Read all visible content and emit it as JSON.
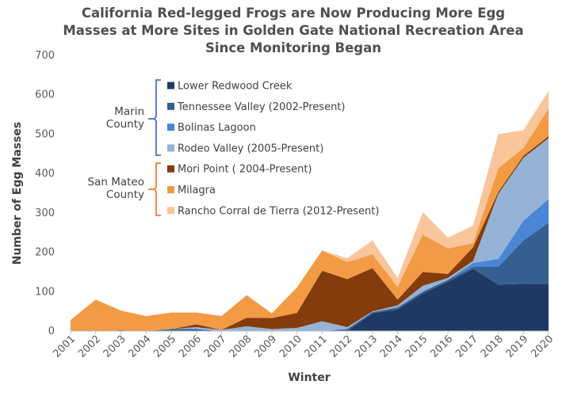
{
  "chart_data": {
    "type": "area",
    "title_lines": [
      "California Red-legged Frogs are Now Producing More Egg",
      "Masses at More Sites in Golden Gate National Recreation Area",
      "Since Monitoring Began"
    ],
    "xlabel": "Winter",
    "ylabel": "Number of Egg Masses",
    "ylim": [
      0,
      700
    ],
    "yticks": [
      0,
      100,
      200,
      300,
      400,
      500,
      600,
      700
    ],
    "x": [
      "2001",
      "2002",
      "2003",
      "2004",
      "2005",
      "2006",
      "2007",
      "2008",
      "2009",
      "2010",
      "2011",
      "2012",
      "2013",
      "2014",
      "2015",
      "2016",
      "2017",
      "2018",
      "2019",
      "2020"
    ],
    "stacked": true,
    "grid": false,
    "legend_position": "upper-left",
    "series": [
      {
        "name": "Lower Redwood Creek",
        "color": "#1f3864",
        "group": "Marin County",
        "values": [
          0,
          0,
          0,
          0,
          0,
          0,
          0,
          0,
          0,
          0,
          0,
          0,
          45,
          55,
          95,
          125,
          158,
          118,
          120,
          120
        ]
      },
      {
        "name": "Tennessee Valley (2002-Present)",
        "color": "#365f91",
        "group": "Marin County",
        "values": [
          0,
          0,
          2,
          0,
          5,
          5,
          0,
          0,
          0,
          0,
          0,
          5,
          3,
          5,
          5,
          5,
          5,
          45,
          110,
          155
        ]
      },
      {
        "name": "Bolinas Lagoon",
        "color": "#4a86d4",
        "group": "Marin County",
        "values": [
          0,
          0,
          0,
          0,
          0,
          0,
          0,
          0,
          0,
          0,
          0,
          0,
          0,
          0,
          0,
          0,
          10,
          20,
          50,
          60
        ]
      },
      {
        "name": "Rodeo Valley (2005-Present)",
        "color": "#95b3d7",
        "group": "Marin County",
        "values": [
          0,
          0,
          0,
          0,
          0,
          5,
          3,
          12,
          5,
          8,
          25,
          5,
          2,
          5,
          15,
          5,
          5,
          165,
          160,
          155
        ]
      },
      {
        "name": "Mori Point ( 2004-Present)",
        "color": "#843c0c",
        "group": "San Mateo County",
        "values": [
          0,
          0,
          0,
          0,
          0,
          7,
          0,
          22,
          28,
          38,
          128,
          122,
          110,
          15,
          35,
          10,
          35,
          5,
          5,
          5
        ]
      },
      {
        "name": "Milagra",
        "color": "#f39a45",
        "group": "San Mateo County",
        "values": [
          28,
          80,
          50,
          38,
          42,
          30,
          35,
          57,
          12,
          65,
          52,
          43,
          35,
          32,
          95,
          65,
          10,
          60,
          20,
          70
        ]
      },
      {
        "name": "Rancho Corral de Tierra (2012-Present)",
        "color": "#f9c59a",
        "group": "San Mateo County",
        "values": [
          0,
          0,
          0,
          0,
          0,
          0,
          0,
          0,
          0,
          0,
          0,
          10,
          35,
          23,
          57,
          27,
          45,
          87,
          45,
          45
        ]
      }
    ],
    "legend_groups": [
      {
        "label_lines": [
          "Marin",
          "County"
        ],
        "color": "#4472c4"
      },
      {
        "label_lines": [
          "San Mateo",
          "County"
        ],
        "color": "#ed7d31"
      }
    ]
  }
}
